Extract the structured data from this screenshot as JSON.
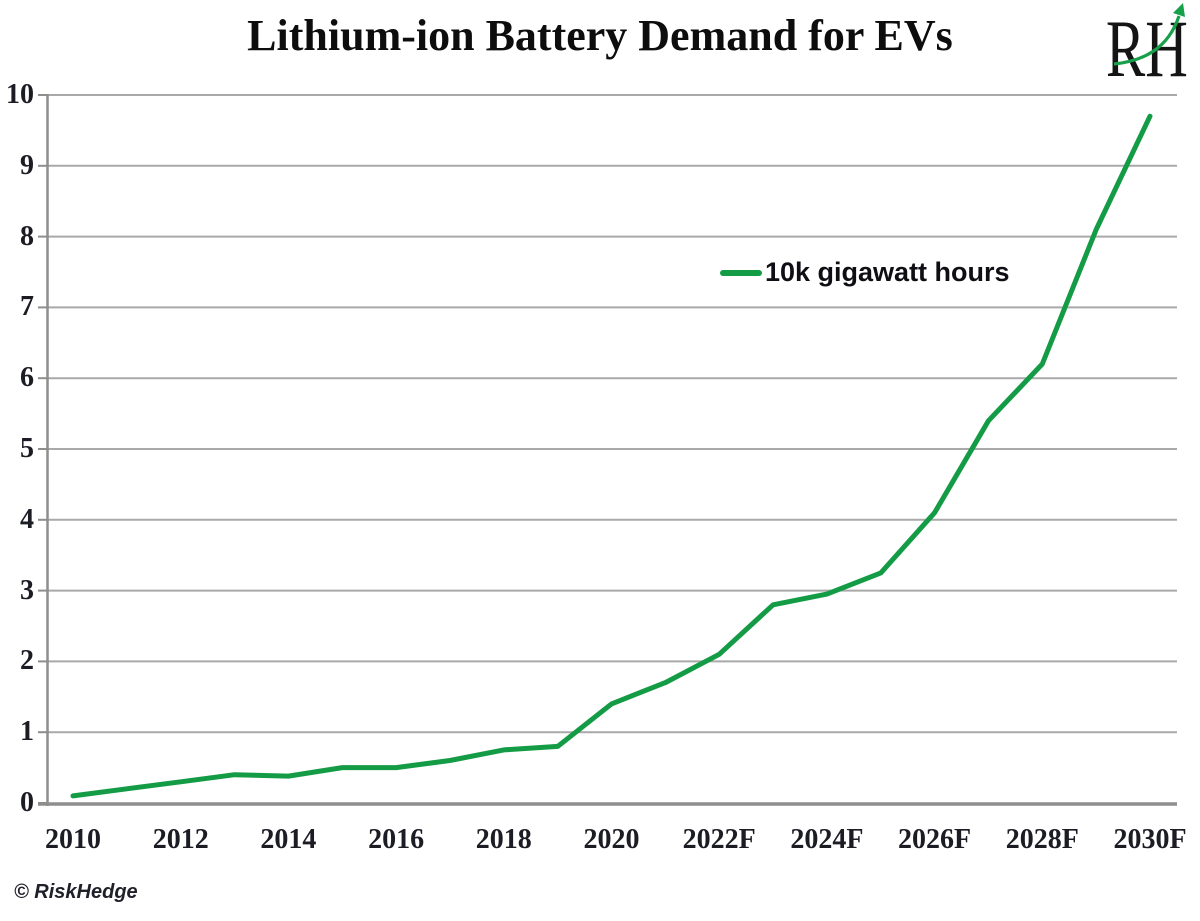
{
  "title": "Lithium-ion Battery Demand for EVs",
  "logo": {
    "text": "RH"
  },
  "legend": {
    "label": "10k gigawatt hours"
  },
  "footer": {
    "credit": "© RiskHedge"
  },
  "colors": {
    "line": "#149b45",
    "grid": "#a9a9a9",
    "axis": "#8e8e8e",
    "tick_text": "#1c1c24",
    "logo_swoosh": "#17a04a"
  },
  "chart_data": {
    "type": "line",
    "title": "Lithium-ion Battery Demand for EVs",
    "x": [
      2010,
      2011,
      2012,
      2013,
      2014,
      2015,
      2016,
      2017,
      2018,
      2019,
      2020,
      2021,
      2022,
      2023,
      2024,
      2025,
      2026,
      2027,
      2028,
      2029,
      2030
    ],
    "x_tick_labels": [
      "2010",
      "2012",
      "2014",
      "2016",
      "2018",
      "2020",
      "2022F",
      "2024F",
      "2026F",
      "2028F",
      "2030F"
    ],
    "series": [
      {
        "name": "10k gigawatt hours",
        "values": [
          0.1,
          0.2,
          0.3,
          0.4,
          0.38,
          0.5,
          0.5,
          0.6,
          0.75,
          0.8,
          1.4,
          1.7,
          2.1,
          2.8,
          2.95,
          3.25,
          4.1,
          5.4,
          6.2,
          8.1,
          9.7
        ]
      }
    ],
    "xlabel": "",
    "ylabel": "",
    "ylim": [
      0,
      10
    ],
    "yticks": [
      0,
      1,
      2,
      3,
      4,
      5,
      6,
      7,
      8,
      9,
      10
    ],
    "grid": true,
    "legend_position": "inside-upper-right"
  }
}
